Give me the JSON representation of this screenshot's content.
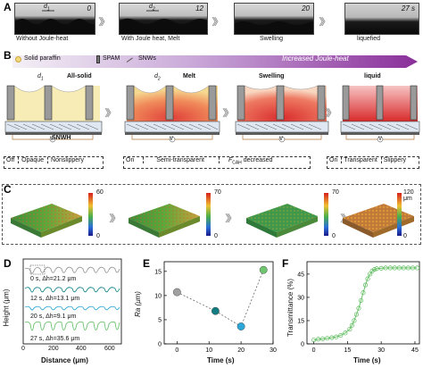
{
  "panelA": {
    "label": "A",
    "times": [
      "0",
      "12",
      "20",
      "27 s"
    ],
    "d1": "d",
    "d1sub": "1",
    "d2": "d",
    "d2sub": "2",
    "captions": [
      "Without Joule-heat",
      "With Joule heat, Melt",
      "Swelling",
      "liquefied"
    ]
  },
  "panelB": {
    "label": "B",
    "legend": {
      "paraffin": "Solid paraffin",
      "spam": "SPAM",
      "snws": "SNWs"
    },
    "arrow_text": "Increased Joule-heat",
    "stages": [
      "All-solid",
      "Melt",
      "Swelling",
      "liquid"
    ],
    "snwh": "SNWH",
    "v": "V",
    "d1": "d",
    "d1sub": "1",
    "d2": "d",
    "d2sub": "2",
    "states": {
      "off": "Off",
      "opaque": "Opaque",
      "nonslippery": "Nonslippery",
      "on": "On",
      "semi": "Semi-transparent",
      "fcah_f": "F",
      "fcah_sub": "CAH",
      "fcah_rest": " decreased",
      "on2": "On",
      "transparent": "Transparent",
      "slippery": "Slippery"
    }
  },
  "panelC": {
    "label": "C",
    "scales": [
      {
        "top": "60",
        "bottom": "0"
      },
      {
        "top": "70",
        "bottom": "0"
      },
      {
        "top": "70",
        "bottom": "0"
      },
      {
        "top": "120 μm",
        "bottom": "0"
      }
    ]
  },
  "panelD": {
    "label": "D",
    "ylabel": "Height (μm)",
    "xlabel": "Distance (μm)",
    "xticks": [
      "0",
      "200",
      "400",
      "600"
    ],
    "annotations": [
      "0 s, Δh=21.2 μm",
      "12 s, Δh=13.1 μm",
      "20 s, Δh=9.1 μm",
      "27 s, Δh=35.6 μm"
    ],
    "colors": [
      "#9a9a9a",
      "#1f8a8f",
      "#36a9d6",
      "#6cc070"
    ]
  },
  "panelE": {
    "label": "E",
    "ylabel": "Ra (μm)",
    "xlabel": "Time (s)",
    "xticks": [
      "0",
      "10",
      "20",
      "30"
    ],
    "yticks": [
      "0",
      "5",
      "10",
      "15"
    ]
  },
  "panelF": {
    "label": "F",
    "ylabel": "Transmittance (%)",
    "xlabel": "Time (s)",
    "xticks": [
      "0",
      "15",
      "30",
      "45"
    ],
    "yticks": [
      "0",
      "15",
      "30",
      "45"
    ]
  },
  "chart_data": [
    {
      "type": "scatter",
      "panel": "E",
      "x": [
        0,
        12,
        20,
        27
      ],
      "y": [
        10.7,
        6.8,
        3.6,
        15.3
      ],
      "point_colors": [
        "#a0a0a0",
        "#137c80",
        "#2aa7d8",
        "#6ec46f"
      ],
      "xlim": [
        -4,
        30
      ],
      "ylim": [
        0,
        17
      ],
      "xlabel": "Time (s)",
      "ylabel": "Ra (μm)",
      "xticks": [
        0,
        10,
        20,
        30
      ],
      "yticks": [
        0,
        5,
        10,
        15
      ]
    },
    {
      "type": "line",
      "panel": "F",
      "x": [
        0,
        2,
        4,
        6,
        8,
        10,
        12,
        14,
        16,
        17,
        18,
        19,
        20,
        21,
        22,
        23,
        24,
        25,
        26,
        27,
        28,
        30,
        32,
        34,
        36,
        38,
        40,
        42,
        44,
        46
      ],
      "y": [
        2.5,
        3,
        3.3,
        3.6,
        4,
        4.5,
        5.5,
        7,
        9.5,
        12,
        15,
        19,
        23,
        28,
        33,
        38,
        42,
        45,
        47,
        48,
        48.5,
        48.8,
        49,
        49,
        49,
        49,
        49,
        49,
        49,
        49
      ],
      "series_color": "#5aba5a",
      "xlim": [
        -3,
        47
      ],
      "ylim": [
        0,
        53
      ],
      "xlabel": "Time (s)",
      "ylabel": "Transmittance (%)",
      "xticks": [
        0,
        15,
        30,
        45
      ],
      "yticks": [
        0,
        15,
        30,
        45
      ]
    }
  ]
}
